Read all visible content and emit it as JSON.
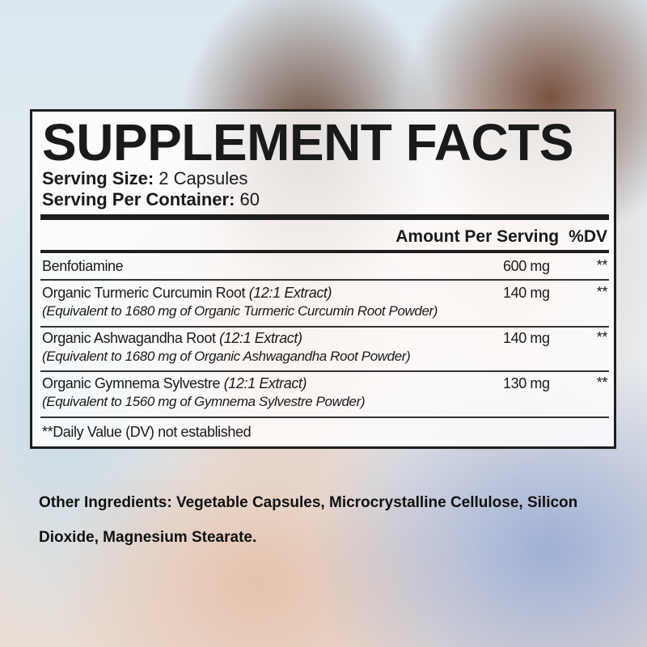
{
  "title": "SUPPLEMENT FACTS",
  "serving_size": {
    "label": "Serving Size:",
    "value": "2 Capsules"
  },
  "servings_per_container": {
    "label": "Serving Per Container:",
    "value": "60"
  },
  "header": {
    "amount": "Amount Per Serving",
    "dv": "%DV"
  },
  "ingredients": [
    {
      "name": "Benfotiamine",
      "extract": "",
      "equivalent": "",
      "amount": "600 mg",
      "dv": "**"
    },
    {
      "name": "Organic Turmeric Curcumin Root",
      "extract": "(12:1 Extract)",
      "equivalent": "(Equivalent to 1680 mg of Organic Turmeric Curcumin Root Powder)",
      "amount": "140 mg",
      "dv": "**"
    },
    {
      "name": "Organic Ashwagandha Root",
      "extract": "(12:1 Extract)",
      "equivalent": "(Equivalent to 1680 mg of Organic Ashwagandha Root Powder)",
      "amount": "140 mg",
      "dv": "**"
    },
    {
      "name": "Organic Gymnema Sylvestre",
      "extract": "(12:1 Extract)",
      "equivalent": "(Equivalent to 1560 mg of Gymnema Sylvestre Powder)",
      "amount": "130 mg",
      "dv": "**"
    }
  ],
  "footnote": "**Daily Value (DV) not established",
  "other_ingredients": {
    "label": "Other Ingredients:",
    "value": "Vegetable Capsules, Microcrystalline Cellulose, Silicon Dioxide, Magnesium Stearate."
  }
}
